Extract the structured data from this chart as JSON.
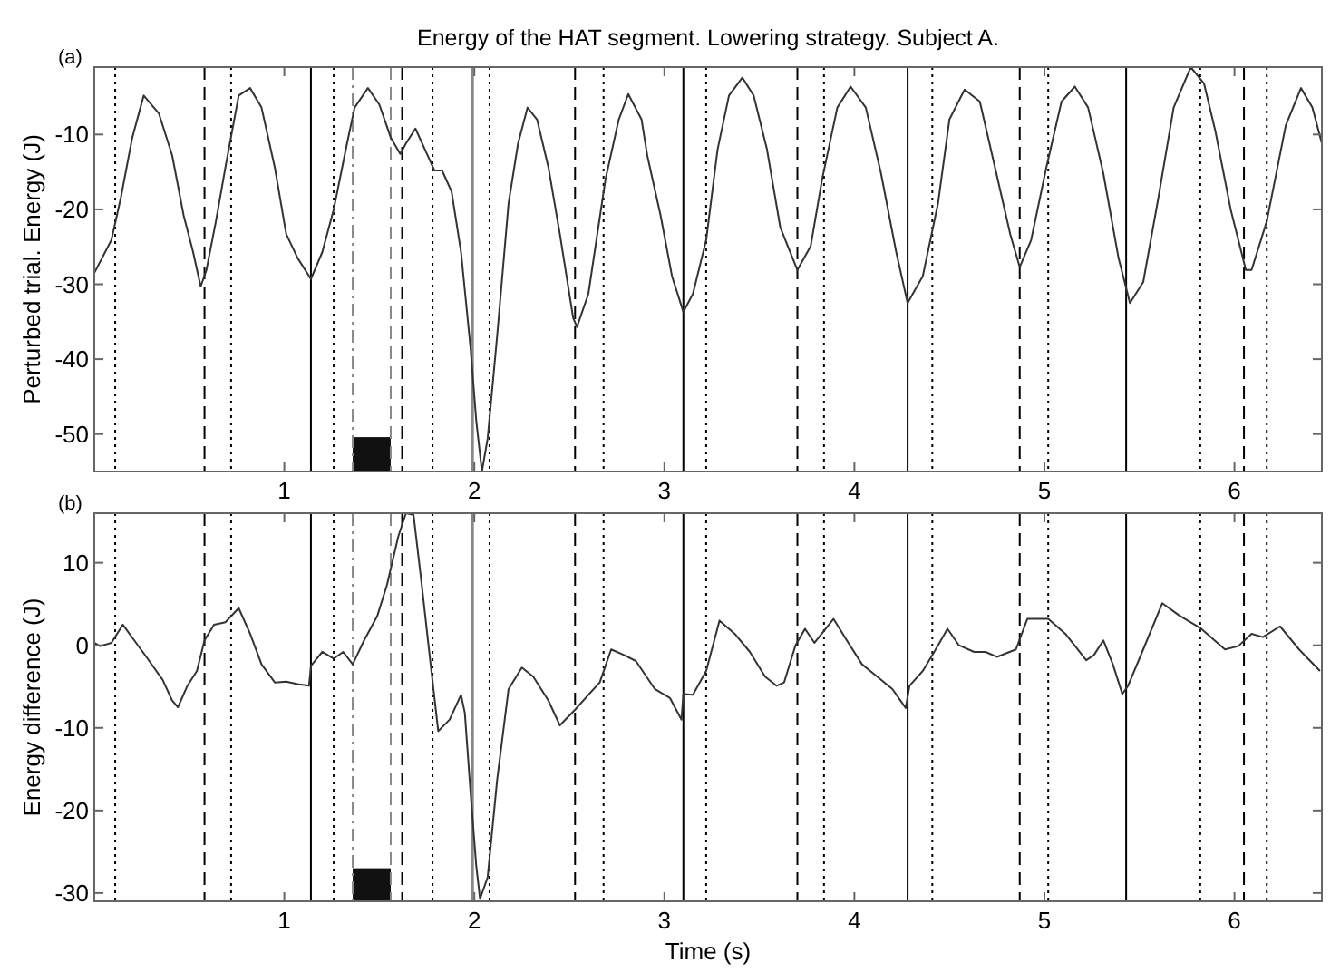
{
  "chart_data": [
    {
      "type": "line",
      "title": "Energy of the HAT segment. Lowering strategy. Subject A.",
      "ylabel": "Perturbed trial. Energy (J)",
      "annotations": [
        "(a)"
      ],
      "xlim": [
        0,
        6.46
      ],
      "xticks": [
        1,
        2,
        3,
        4,
        5,
        6
      ],
      "ylim": [
        -55,
        -1
      ],
      "yticks": [
        -50,
        -40,
        -30,
        -20,
        -10
      ],
      "grid": false,
      "series": [
        {
          "color": "#333333",
          "x": [
            0,
            0.09,
            0.14,
            0.2,
            0.26,
            0.34,
            0.41,
            0.47,
            0.52,
            0.56,
            0.59,
            0.64,
            0.69,
            0.76,
            0.82,
            0.88,
            0.95,
            1.01,
            1.07,
            1.14,
            1.2,
            1.26,
            1.33,
            1.37,
            1.44,
            1.5,
            1.56,
            1.61,
            1.64,
            1.69,
            1.74,
            1.79,
            1.83,
            1.88,
            1.93,
            1.98,
            2.01,
            2.04,
            2.07,
            2.12,
            2.18,
            2.23,
            2.28,
            2.33,
            2.39,
            2.45,
            2.52,
            2.54,
            2.6,
            2.69,
            2.76,
            2.81,
            2.88,
            2.91,
            2.98,
            3.04,
            3.1,
            3.15,
            3.22,
            3.28,
            3.34,
            3.41,
            3.47,
            3.54,
            3.61,
            3.7,
            3.77,
            3.83,
            3.91,
            3.98,
            4.06,
            4.14,
            4.22,
            4.28,
            4.36,
            4.44,
            4.5,
            4.58,
            4.66,
            4.74,
            4.82,
            4.87,
            4.93,
            5.01,
            5.09,
            5.16,
            5.23,
            5.31,
            5.39,
            5.45,
            5.52,
            5.6,
            5.68,
            5.77,
            5.84,
            5.9,
            5.98,
            6.06,
            6.09,
            6.17,
            6.27,
            6.35,
            6.41,
            6.46
          ],
          "values": [
            -28.5,
            -24.1,
            -18.4,
            -10.4,
            -4.8,
            -7.2,
            -12.8,
            -20.8,
            -25.7,
            -30.3,
            -28.1,
            -21.6,
            -14.4,
            -4.8,
            -3.8,
            -6.4,
            -14.4,
            -23.3,
            -26.5,
            -29.3,
            -25.7,
            -20,
            -11.2,
            -6.4,
            -3.8,
            -6,
            -10.4,
            -12.6,
            -11.2,
            -9.2,
            -12,
            -14.8,
            -14.8,
            -17.6,
            -25.7,
            -38.5,
            -48.2,
            -55,
            -50.6,
            -36.9,
            -19.2,
            -11.2,
            -6.4,
            -8,
            -14.4,
            -23.3,
            -34.5,
            -35.7,
            -31.3,
            -16,
            -8,
            -4.6,
            -8,
            -12.8,
            -20.8,
            -28.9,
            -33.7,
            -31.3,
            -24.1,
            -12,
            -4.8,
            -2.4,
            -4.8,
            -12,
            -22.4,
            -28.1,
            -24.9,
            -16,
            -6.4,
            -3.6,
            -6.4,
            -15.2,
            -25.7,
            -32.5,
            -28.9,
            -19.2,
            -8,
            -4,
            -5.6,
            -14.4,
            -23.3,
            -27.7,
            -24.1,
            -14.4,
            -5.6,
            -3.6,
            -6.4,
            -15.2,
            -26.5,
            -32.5,
            -29.7,
            -18.4,
            -6.4,
            -1,
            -3.2,
            -9.6,
            -20,
            -28.1,
            -28.1,
            -21.6,
            -8.8,
            -3.8,
            -6.4,
            -11.2
          ]
        }
      ],
      "ref_lines": [
        {
          "axis": "x",
          "value": 0.11,
          "line_style": "dotted",
          "color": "#000000"
        },
        {
          "axis": "x",
          "value": 0.58,
          "line_style": "dashed",
          "color": "#000000"
        },
        {
          "axis": "x",
          "value": 0.72,
          "line_style": "dotted",
          "color": "#000000"
        },
        {
          "axis": "x",
          "value": 1.14,
          "line_style": "solid",
          "color": "#000000"
        },
        {
          "axis": "x",
          "value": 1.26,
          "line_style": "dotted",
          "color": "#000000"
        },
        {
          "axis": "x",
          "value": 1.36,
          "line_style": "dashdot",
          "color": "#888888"
        },
        {
          "axis": "x",
          "value": 1.56,
          "line_style": "dashed",
          "color": "#888888"
        },
        {
          "axis": "x",
          "value": 1.62,
          "line_style": "dashed",
          "color": "#000000"
        },
        {
          "axis": "x",
          "value": 1.78,
          "line_style": "dotted",
          "color": "#000000"
        },
        {
          "axis": "x",
          "value": 1.99,
          "line_style": "solid",
          "color": "#888888"
        },
        {
          "axis": "x",
          "value": 2.08,
          "line_style": "dotted",
          "color": "#000000"
        },
        {
          "axis": "x",
          "value": 2.53,
          "line_style": "dashed",
          "color": "#000000"
        },
        {
          "axis": "x",
          "value": 2.68,
          "line_style": "dotted",
          "color": "#000000"
        },
        {
          "axis": "x",
          "value": 3.1,
          "line_style": "solid",
          "color": "#000000"
        },
        {
          "axis": "x",
          "value": 3.22,
          "line_style": "dotted",
          "color": "#000000"
        },
        {
          "axis": "x",
          "value": 3.7,
          "line_style": "dashed",
          "color": "#000000"
        },
        {
          "axis": "x",
          "value": 3.84,
          "line_style": "dotted",
          "color": "#000000"
        },
        {
          "axis": "x",
          "value": 4.28,
          "line_style": "solid",
          "color": "#000000"
        },
        {
          "axis": "x",
          "value": 4.41,
          "line_style": "dotted",
          "color": "#000000"
        },
        {
          "axis": "x",
          "value": 4.87,
          "line_style": "dashed",
          "color": "#000000"
        },
        {
          "axis": "x",
          "value": 5.02,
          "line_style": "dotted",
          "color": "#000000"
        },
        {
          "axis": "x",
          "value": 5.43,
          "line_style": "solid",
          "color": "#000000"
        },
        {
          "axis": "x",
          "value": 5.82,
          "line_style": "dotted",
          "color": "#000000"
        },
        {
          "axis": "x",
          "value": 6.05,
          "line_style": "dashed",
          "color": "#000000"
        },
        {
          "axis": "x",
          "value": 6.17,
          "line_style": "dotted",
          "color": "#000000"
        }
      ],
      "bands": [
        {
          "axis": "x",
          "from": 1.36,
          "to": 1.56,
          "color": "#111111"
        }
      ]
    },
    {
      "type": "line",
      "xlabel": "Time (s)",
      "ylabel": "Energy difference (J)",
      "annotations": [
        "(b)"
      ],
      "xlim": [
        0,
        6.46
      ],
      "xticks": [
        1,
        2,
        3,
        4,
        5,
        6
      ],
      "ylim": [
        -31,
        16
      ],
      "yticks": [
        -30,
        -20,
        -10,
        0,
        10
      ],
      "grid": false,
      "series": [
        {
          "color": "#333333",
          "x": [
            0,
            0.03,
            0.09,
            0.15,
            0.22,
            0.28,
            0.36,
            0.41,
            0.44,
            0.49,
            0.54,
            0.58,
            0.63,
            0.69,
            0.76,
            0.82,
            0.88,
            0.95,
            1.01,
            1.07,
            1.13,
            1.14,
            1.2,
            1.26,
            1.31,
            1.36,
            1.42,
            1.49,
            1.54,
            1.6,
            1.64,
            1.68,
            1.72,
            1.77,
            1.81,
            1.87,
            1.93,
            1.95,
            1.98,
            2.01,
            2.03,
            2.07,
            2.12,
            2.18,
            2.25,
            2.31,
            2.39,
            2.45,
            2.53,
            2.6,
            2.66,
            2.72,
            2.79,
            2.85,
            2.95,
            3.03,
            3.09,
            3.1,
            3.15,
            3.22,
            3.29,
            3.37,
            3.45,
            3.53,
            3.59,
            3.63,
            3.69,
            3.74,
            3.79,
            3.89,
            3.96,
            4.04,
            4.12,
            4.2,
            4.27,
            4.29,
            4.36,
            4.42,
            4.49,
            4.55,
            4.63,
            4.69,
            4.75,
            4.85,
            4.91,
            5.02,
            5.11,
            5.22,
            5.26,
            5.31,
            5.36,
            5.41,
            5.44,
            5.52,
            5.62,
            5.71,
            5.82,
            5.95,
            6.02,
            6.09,
            6.15,
            6.24,
            6.34,
            6.45
          ],
          "values": [
            0.3,
            -0.1,
            0.3,
            2.5,
            0.3,
            -1.6,
            -4.2,
            -6.7,
            -7.5,
            -4.9,
            -3.1,
            0.6,
            2.5,
            2.8,
            4.5,
            1.4,
            -2.3,
            -4.5,
            -4.4,
            -4.7,
            -4.9,
            -2.5,
            -0.8,
            -1.6,
            -0.8,
            -2.3,
            0.6,
            3.6,
            7.3,
            13.2,
            16,
            15.8,
            8,
            -2.3,
            -10.4,
            -9,
            -6,
            -8.2,
            -17.8,
            -26.7,
            -30.7,
            -28.1,
            -16.3,
            -5.3,
            -2.7,
            -3.8,
            -6.7,
            -9.7,
            -7.8,
            -6,
            -4.5,
            -0.5,
            -1.2,
            -1.9,
            -5.3,
            -6.4,
            -9,
            -5.9,
            -6,
            -3.1,
            3,
            1.4,
            -0.8,
            -3.8,
            -4.9,
            -4.5,
            0,
            2,
            0.3,
            3.2,
            0.6,
            -2.3,
            -3.8,
            -5.3,
            -7.6,
            -4.9,
            -3.1,
            -0.8,
            2,
            0,
            -0.8,
            -0.8,
            -1.4,
            -0.5,
            3.2,
            3.2,
            1.4,
            -1.8,
            -1.2,
            0.6,
            -2.3,
            -5.9,
            -4.9,
            -0.5,
            5.1,
            3.6,
            2.1,
            -0.5,
            -0.1,
            1.4,
            1,
            2.3,
            -0.5,
            -3.1
          ]
        }
      ],
      "ref_lines": [
        {
          "axis": "x",
          "value": 0.11,
          "line_style": "dotted",
          "color": "#000000"
        },
        {
          "axis": "x",
          "value": 0.58,
          "line_style": "dashed",
          "color": "#000000"
        },
        {
          "axis": "x",
          "value": 0.72,
          "line_style": "dotted",
          "color": "#000000"
        },
        {
          "axis": "x",
          "value": 1.14,
          "line_style": "solid",
          "color": "#000000"
        },
        {
          "axis": "x",
          "value": 1.26,
          "line_style": "dotted",
          "color": "#000000"
        },
        {
          "axis": "x",
          "value": 1.36,
          "line_style": "dashdot",
          "color": "#888888"
        },
        {
          "axis": "x",
          "value": 1.56,
          "line_style": "dashed",
          "color": "#888888"
        },
        {
          "axis": "x",
          "value": 1.62,
          "line_style": "dashed",
          "color": "#000000"
        },
        {
          "axis": "x",
          "value": 1.78,
          "line_style": "dotted",
          "color": "#000000"
        },
        {
          "axis": "x",
          "value": 1.99,
          "line_style": "solid",
          "color": "#888888"
        },
        {
          "axis": "x",
          "value": 2.08,
          "line_style": "dotted",
          "color": "#000000"
        },
        {
          "axis": "x",
          "value": 2.53,
          "line_style": "dashed",
          "color": "#000000"
        },
        {
          "axis": "x",
          "value": 2.68,
          "line_style": "dotted",
          "color": "#000000"
        },
        {
          "axis": "x",
          "value": 3.1,
          "line_style": "solid",
          "color": "#000000"
        },
        {
          "axis": "x",
          "value": 3.22,
          "line_style": "dotted",
          "color": "#000000"
        },
        {
          "axis": "x",
          "value": 3.7,
          "line_style": "dashed",
          "color": "#000000"
        },
        {
          "axis": "x",
          "value": 3.84,
          "line_style": "dotted",
          "color": "#000000"
        },
        {
          "axis": "x",
          "value": 4.28,
          "line_style": "solid",
          "color": "#000000"
        },
        {
          "axis": "x",
          "value": 4.41,
          "line_style": "dotted",
          "color": "#000000"
        },
        {
          "axis": "x",
          "value": 4.87,
          "line_style": "dashed",
          "color": "#000000"
        },
        {
          "axis": "x",
          "value": 5.02,
          "line_style": "dotted",
          "color": "#000000"
        },
        {
          "axis": "x",
          "value": 5.43,
          "line_style": "solid",
          "color": "#000000"
        },
        {
          "axis": "x",
          "value": 5.82,
          "line_style": "dotted",
          "color": "#000000"
        },
        {
          "axis": "x",
          "value": 6.05,
          "line_style": "dashed",
          "color": "#000000"
        },
        {
          "axis": "x",
          "value": 6.17,
          "line_style": "dotted",
          "color": "#000000"
        }
      ],
      "bands": [
        {
          "axis": "x",
          "from": 1.36,
          "to": 1.56,
          "color": "#111111"
        }
      ]
    }
  ]
}
